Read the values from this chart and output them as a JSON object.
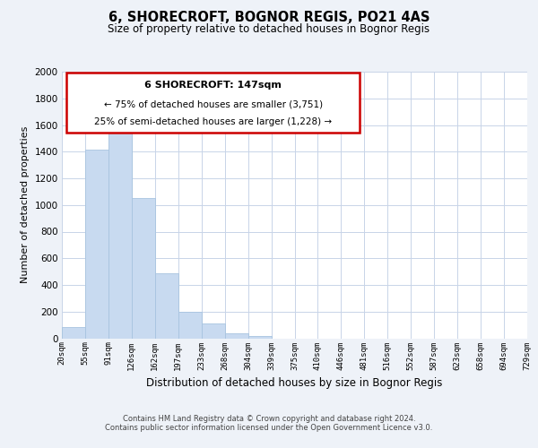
{
  "title": "6, SHORECROFT, BOGNOR REGIS, PO21 4AS",
  "subtitle": "Size of property relative to detached houses in Bognor Regis",
  "xlabel": "Distribution of detached houses by size in Bognor Regis",
  "ylabel": "Number of detached properties",
  "bar_color": "#c8daf0",
  "bar_edge_color": "#a8c4e0",
  "background_color": "#eef2f8",
  "plot_bg_color": "#ffffff",
  "grid_color": "#c8d4e8",
  "bin_labels": [
    "20sqm",
    "55sqm",
    "91sqm",
    "126sqm",
    "162sqm",
    "197sqm",
    "233sqm",
    "268sqm",
    "304sqm",
    "339sqm",
    "375sqm",
    "410sqm",
    "446sqm",
    "481sqm",
    "516sqm",
    "552sqm",
    "587sqm",
    "623sqm",
    "658sqm",
    "694sqm",
    "729sqm"
  ],
  "bar_heights": [
    85,
    1415,
    1605,
    1050,
    490,
    200,
    110,
    35,
    15,
    0,
    0,
    0,
    0,
    0,
    0,
    0,
    0,
    0,
    0,
    0
  ],
  "ylim": [
    0,
    2000
  ],
  "yticks": [
    0,
    200,
    400,
    600,
    800,
    1000,
    1200,
    1400,
    1600,
    1800,
    2000
  ],
  "annotation_title": "6 SHORECROFT: 147sqm",
  "annotation_line1": "← 75% of detached houses are smaller (3,751)",
  "annotation_line2": "25% of semi-detached houses are larger (1,228) →",
  "annotation_box_color": "#ffffff",
  "annotation_box_edge": "#cc0000",
  "footer_line1": "Contains HM Land Registry data © Crown copyright and database right 2024.",
  "footer_line2": "Contains public sector information licensed under the Open Government Licence v3.0.",
  "figsize": [
    6.0,
    5.0
  ],
  "dpi": 100
}
